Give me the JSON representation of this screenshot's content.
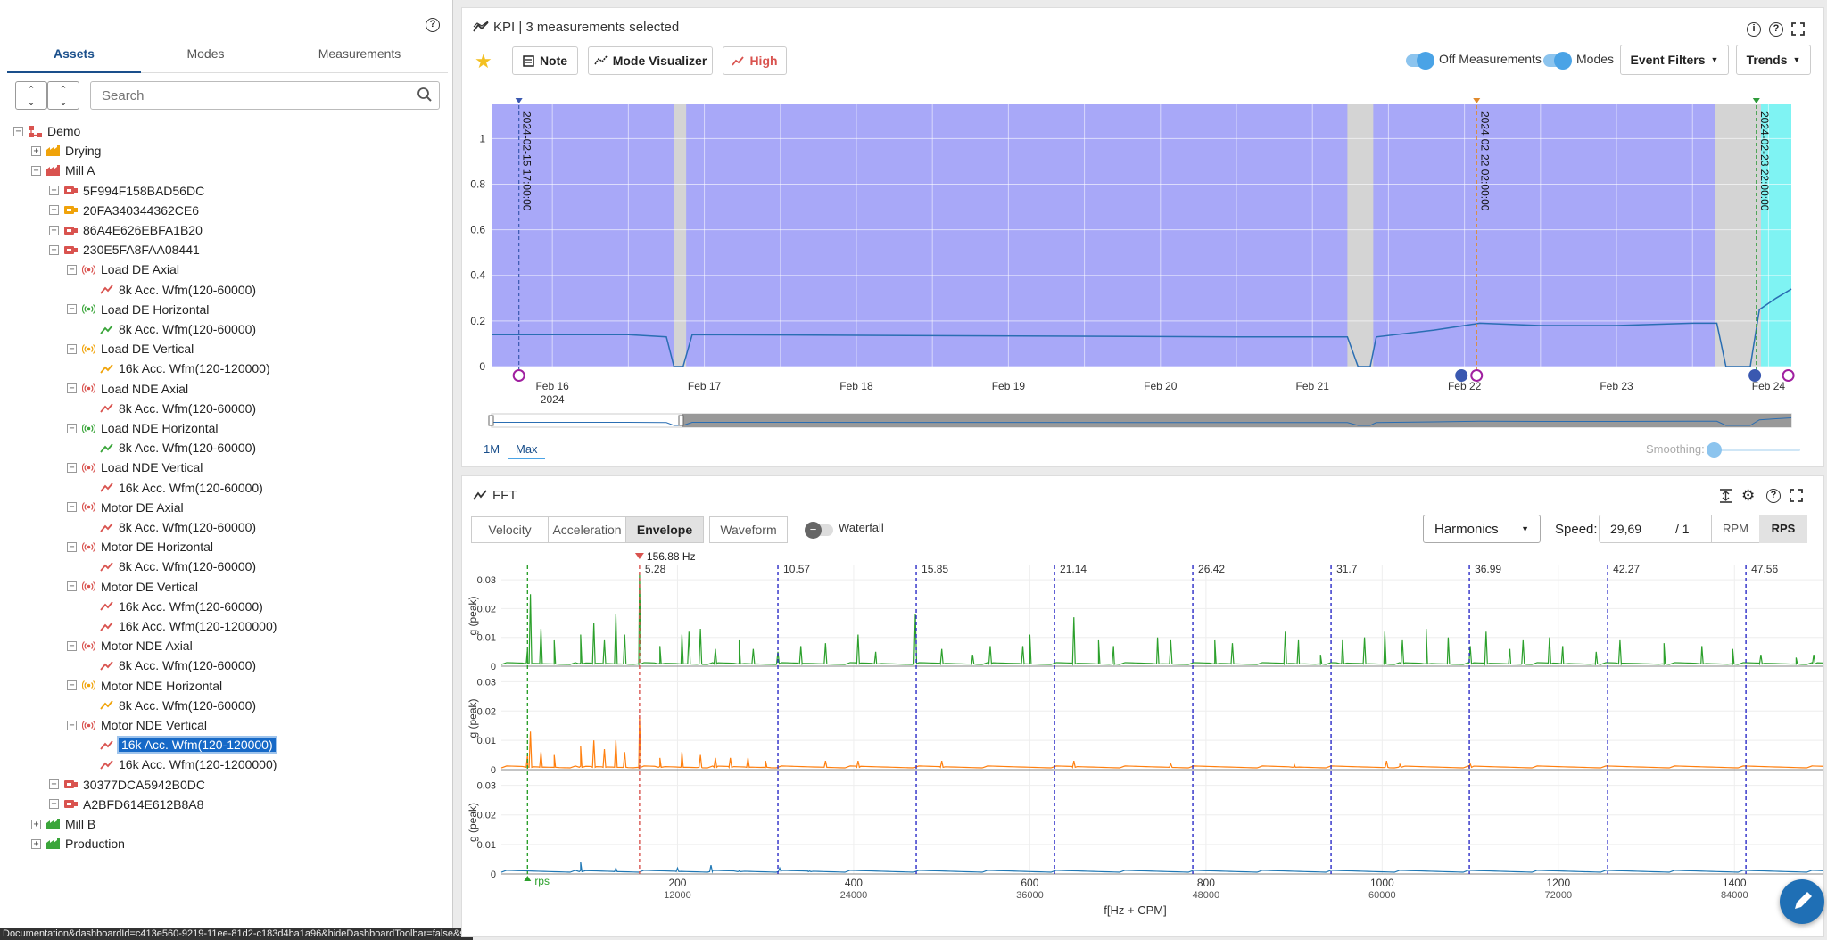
{
  "left_panel": {
    "tabs": [
      "Assets",
      "Modes",
      "Measurements"
    ],
    "search_placeholder": "Search",
    "tree": [
      {
        "label": "Demo",
        "level": 0,
        "tog": "−",
        "icon": "demo-root-icon",
        "color": "#d9534f"
      },
      {
        "label": "Drying",
        "level": 1,
        "tog": "+",
        "icon": "factory-icon",
        "color": "#f0a30a"
      },
      {
        "label": "Mill A",
        "level": 1,
        "tog": "−",
        "icon": "factory-icon",
        "color": "#d9534f"
      },
      {
        "label": "5F994F158BAD56DC",
        "level": 2,
        "tog": "+",
        "icon": "machine-icon",
        "color": "#d9534f"
      },
      {
        "label": "20FA340344362CE6",
        "level": 2,
        "tog": "+",
        "icon": "machine-icon",
        "color": "#f0a30a"
      },
      {
        "label": "86A4E626EBFA1B20",
        "level": 2,
        "tog": "+",
        "icon": "machine-icon",
        "color": "#d9534f"
      },
      {
        "label": "230E5FA8FAA08441",
        "level": 2,
        "tog": "−",
        "icon": "machine-icon",
        "color": "#d9534f"
      },
      {
        "label": "Load DE Axial",
        "level": 3,
        "tog": "−",
        "icon": "sensor-icon",
        "color": "#d9534f"
      },
      {
        "label": "8k Acc. Wfm(120-60000)",
        "level": 4,
        "tog": "",
        "icon": "trend-icon",
        "color": "#d9534f"
      },
      {
        "label": "Load DE Horizontal",
        "level": 3,
        "tog": "−",
        "icon": "sensor-icon",
        "color": "#3aa53a"
      },
      {
        "label": "8k Acc. Wfm(120-60000)",
        "level": 4,
        "tog": "",
        "icon": "trend-icon",
        "color": "#3aa53a"
      },
      {
        "label": "Load DE Vertical",
        "level": 3,
        "tog": "−",
        "icon": "sensor-icon",
        "color": "#f0a30a"
      },
      {
        "label": "16k Acc. Wfm(120-120000)",
        "level": 4,
        "tog": "",
        "icon": "trend-icon",
        "color": "#f0a30a"
      },
      {
        "label": "Load NDE Axial",
        "level": 3,
        "tog": "−",
        "icon": "sensor-icon",
        "color": "#d9534f"
      },
      {
        "label": "8k Acc. Wfm(120-60000)",
        "level": 4,
        "tog": "",
        "icon": "trend-icon",
        "color": "#d9534f"
      },
      {
        "label": "Load NDE Horizontal",
        "level": 3,
        "tog": "−",
        "icon": "sensor-icon",
        "color": "#3aa53a"
      },
      {
        "label": "8k Acc. Wfm(120-60000)",
        "level": 4,
        "tog": "",
        "icon": "trend-icon",
        "color": "#3aa53a"
      },
      {
        "label": "Load NDE Vertical",
        "level": 3,
        "tog": "−",
        "icon": "sensor-icon",
        "color": "#d9534f"
      },
      {
        "label": "16k Acc. Wfm(120-60000)",
        "level": 4,
        "tog": "",
        "icon": "trend-icon",
        "color": "#d9534f"
      },
      {
        "label": "Motor DE Axial",
        "level": 3,
        "tog": "−",
        "icon": "sensor-icon",
        "color": "#d9534f"
      },
      {
        "label": "8k Acc. Wfm(120-60000)",
        "level": 4,
        "tog": "",
        "icon": "trend-icon",
        "color": "#d9534f"
      },
      {
        "label": "Motor DE Horizontal",
        "level": 3,
        "tog": "−",
        "icon": "sensor-icon",
        "color": "#d9534f"
      },
      {
        "label": "8k Acc. Wfm(120-60000)",
        "level": 4,
        "tog": "",
        "icon": "trend-icon",
        "color": "#d9534f"
      },
      {
        "label": "Motor DE Vertical",
        "level": 3,
        "tog": "−",
        "icon": "sensor-icon",
        "color": "#d9534f"
      },
      {
        "label": "16k Acc. Wfm(120-60000)",
        "level": 4,
        "tog": "",
        "icon": "trend-icon",
        "color": "#d9534f"
      },
      {
        "label": "16k Acc. Wfm(120-1200000)",
        "level": 4,
        "tog": "",
        "icon": "trend-icon",
        "color": "#d9534f"
      },
      {
        "label": "Motor NDE Axial",
        "level": 3,
        "tog": "−",
        "icon": "sensor-icon",
        "color": "#d9534f"
      },
      {
        "label": "8k Acc. Wfm(120-60000)",
        "level": 4,
        "tog": "",
        "icon": "trend-icon",
        "color": "#d9534f"
      },
      {
        "label": "Motor NDE Horizontal",
        "level": 3,
        "tog": "−",
        "icon": "sensor-icon",
        "color": "#f0a30a"
      },
      {
        "label": "8k Acc. Wfm(120-60000)",
        "level": 4,
        "tog": "",
        "icon": "trend-icon",
        "color": "#f0a30a"
      },
      {
        "label": "Motor NDE Vertical",
        "level": 3,
        "tog": "−",
        "icon": "sensor-icon",
        "color": "#d9534f"
      },
      {
        "label": "16k Acc. Wfm(120-120000)",
        "level": 4,
        "tog": "",
        "icon": "trend-icon",
        "color": "#d9534f",
        "selected": true
      },
      {
        "label": "16k Acc. Wfm(120-1200000)",
        "level": 4,
        "tog": "",
        "icon": "trend-icon",
        "color": "#d9534f"
      },
      {
        "label": "30377DCA5942B0DC",
        "level": 2,
        "tog": "+",
        "icon": "machine-icon",
        "color": "#d9534f"
      },
      {
        "label": "A2BFD614E612B8A8",
        "level": 2,
        "tog": "+",
        "icon": "machine-icon",
        "color": "#d9534f"
      },
      {
        "label": "Mill B",
        "level": 1,
        "tog": "+",
        "icon": "factory-icon",
        "color": "#3aa53a"
      },
      {
        "label": "Production",
        "level": 1,
        "tog": "+",
        "icon": "factory-icon",
        "color": "#3aa53a"
      }
    ]
  },
  "status_url": "Documentation&dashboardId=c413e560-9219-11ee-81d2-c183d4ba1a96&hideDashboardToolbar=false&se...",
  "kpi": {
    "title": "KPI | 3 measurements selected",
    "note_label": "Note",
    "mode_visualizer_label": "Mode Visualizer",
    "high_label": "High",
    "off_measurements_label": "Off Measurements",
    "modes_label": "Modes",
    "event_filters_label": "Event Filters",
    "trends_label": "Trends",
    "range_buttons": [
      "1M",
      "Max"
    ],
    "smoothing_label": "Smoothing:",
    "colors": {
      "fill": "#a8a8f8",
      "highlight": "#7ff3f3",
      "gap": "#d4d4d4",
      "line": "#2a6eb3"
    }
  },
  "fft": {
    "title": "FFT",
    "tabs": [
      "Velocity",
      "Acceleration",
      "Envelope",
      "Waveform"
    ],
    "selected_tab": "Envelope",
    "waterfall_label": "Waterfall",
    "harmonics_label": "Harmonics",
    "speed_label": "Speed:",
    "speed_value": "29,69",
    "speed_ratio": "/ 1",
    "rpm_label": "RPM",
    "rps_label": "RPS",
    "marker_label": "156.88 Hz",
    "rps_marker_label": "rps",
    "xlabel": "f[Hz + CPM]",
    "ylabel": "g (peak)"
  },
  "chart_data": [
    {
      "type": "area",
      "title": "KPI | 3 measurements selected",
      "x_ticks": [
        "Feb 16",
        "Feb 17",
        "Feb 18",
        "Feb 19",
        "Feb 20",
        "Feb 21",
        "Feb 22",
        "Feb 23",
        "Feb 24"
      ],
      "x_year_label": "2024",
      "y_ticks": [
        0,
        0.2,
        0.4,
        0.6,
        0.8,
        1
      ],
      "ylim": [
        0,
        1.15
      ],
      "xlim_days": [
        15.6,
        24.15
      ],
      "series": [
        {
          "x": [
            15.6,
            16.5,
            16.75,
            16.8,
            16.86,
            16.92,
            20.5,
            21.23,
            21.3,
            21.38,
            21.42,
            21.8,
            22.0,
            22.1,
            22.5,
            23.0,
            23.5,
            23.66,
            23.72,
            23.88,
            23.94,
            24.05,
            24.15
          ],
          "values": [
            0.14,
            0.14,
            0.13,
            0,
            0,
            0.14,
            0.13,
            0.13,
            0,
            0,
            0.13,
            0.16,
            0.18,
            0.19,
            0.18,
            0.18,
            0.19,
            0.19,
            0,
            0,
            0.25,
            0.3,
            0.34
          ]
        }
      ],
      "gaps_days": [
        [
          16.8,
          16.88
        ],
        [
          21.23,
          21.4
        ],
        [
          23.65,
          23.95
        ]
      ],
      "highlight_days": [
        23.95,
        24.15
      ],
      "cursors": [
        {
          "x": 15.78,
          "label": "2024-02-15 17:00:00",
          "color": "#3a58b0"
        },
        {
          "x": 22.08,
          "label": "2024-02-22 02:00:00",
          "color": "#e08a2c"
        },
        {
          "x": 23.92,
          "label": "2024-02-23 22:00:00",
          "color": "#2e9b3a"
        }
      ]
    },
    {
      "type": "line",
      "title": "FFT",
      "x_ticks_hz": [
        200,
        400,
        600,
        800,
        1000,
        1200,
        1400
      ],
      "x_ticks_cpm": [
        "12000",
        "24000",
        "36000",
        "48000",
        "60000",
        "72000",
        "84000"
      ],
      "xlim": [
        0,
        1500
      ],
      "xlabel": "f[Hz + CPM]",
      "ylabel": "g (peak)",
      "y_ticks": [
        0,
        0.01,
        0.02,
        0.03
      ],
      "ylim": [
        0,
        0.035
      ],
      "harmonics": [
        {
          "hz": 156.88,
          "label": "5.28"
        },
        {
          "hz": 314.0,
          "label": "10.57"
        },
        {
          "hz": 471.0,
          "label": "15.85"
        },
        {
          "hz": 628.0,
          "label": "21.14"
        },
        {
          "hz": 785.0,
          "label": "26.42"
        },
        {
          "hz": 942.0,
          "label": "31.7"
        },
        {
          "hz": 1099.0,
          "label": "36.99"
        },
        {
          "hz": 1256.0,
          "label": "42.27"
        },
        {
          "hz": 1413.0,
          "label": "47.56"
        }
      ],
      "rps_hz": 29.69,
      "series": [
        {
          "color": "#2ca02c",
          "peaks": [
            [
              29.7,
              0.006
            ],
            [
              33,
              0.025
            ],
            [
              45,
              0.013
            ],
            [
              60,
              0.009
            ],
            [
              90,
              0.011
            ],
            [
              105,
              0.015
            ],
            [
              117,
              0.009
            ],
            [
              130,
              0.018
            ],
            [
              140,
              0.011
            ],
            [
              156.88,
              0.032
            ],
            [
              180,
              0.007
            ],
            [
              205,
              0.011
            ],
            [
              213,
              0.012
            ],
            [
              226,
              0.013
            ],
            [
              243,
              0.006
            ],
            [
              270,
              0.009
            ],
            [
              286,
              0.006
            ],
            [
              314,
              0.005
            ],
            [
              340,
              0.007
            ],
            [
              368,
              0.008
            ],
            [
              405,
              0.011
            ],
            [
              425,
              0.005
            ],
            [
              470,
              0.018
            ],
            [
              500,
              0.006
            ],
            [
              535,
              0.004
            ],
            [
              555,
              0.007
            ],
            [
              592,
              0.007
            ],
            [
              600,
              0.011
            ],
            [
              650,
              0.017
            ],
            [
              678,
              0.009
            ],
            [
              695,
              0.007
            ],
            [
              745,
              0.01
            ],
            [
              760,
              0.009
            ],
            [
              810,
              0.009
            ],
            [
              830,
              0.008
            ],
            [
              890,
              0.012
            ],
            [
              905,
              0.009
            ],
            [
              930,
              0.004
            ],
            [
              955,
              0.009
            ],
            [
              980,
              0.01
            ],
            [
              1003,
              0.012
            ],
            [
              1023,
              0.009
            ],
            [
              1050,
              0.013
            ],
            [
              1075,
              0.01
            ],
            [
              1100,
              0.007
            ],
            [
              1118,
              0.012
            ],
            [
              1145,
              0.006
            ],
            [
              1160,
              0.009
            ],
            [
              1190,
              0.01
            ],
            [
              1205,
              0.007
            ],
            [
              1243,
              0.005
            ],
            [
              1270,
              0.009
            ],
            [
              1320,
              0.008
            ],
            [
              1363,
              0.007
            ],
            [
              1398,
              0.006
            ],
            [
              1430,
              0.004
            ],
            [
              1470,
              0.003
            ],
            [
              1490,
              0.004
            ]
          ]
        },
        {
          "color": "#ff7f0e",
          "peaks": [
            [
              29.7,
              0.005
            ],
            [
              33,
              0.013
            ],
            [
              45,
              0.006
            ],
            [
              60,
              0.005
            ],
            [
              90,
              0.008
            ],
            [
              105,
              0.01
            ],
            [
              117,
              0.007
            ],
            [
              130,
              0.01
            ],
            [
              140,
              0.006
            ],
            [
              156.88,
              0.018
            ],
            [
              180,
              0.004
            ],
            [
              205,
              0.006
            ],
            [
              226,
              0.005
            ],
            [
              243,
              0.004
            ],
            [
              260,
              0.004
            ],
            [
              280,
              0.004
            ],
            [
              300,
              0.003
            ],
            [
              368,
              0.003
            ],
            [
              405,
              0.003
            ],
            [
              500,
              0.003
            ],
            [
              650,
              0.003
            ],
            [
              760,
              0.002
            ],
            [
              900,
              0.002
            ],
            [
              1005,
              0.003
            ],
            [
              1020,
              0.002
            ],
            [
              1100,
              0.002
            ]
          ]
        },
        {
          "color": "#1f77b4",
          "peaks": [
            [
              90,
              0.004
            ],
            [
              130,
              0.002
            ],
            [
              200,
              0.002
            ],
            [
              238,
              0.003
            ],
            [
              270,
              0.001
            ],
            [
              316,
              0.002
            ],
            [
              350,
              0.001
            ]
          ]
        }
      ]
    }
  ]
}
